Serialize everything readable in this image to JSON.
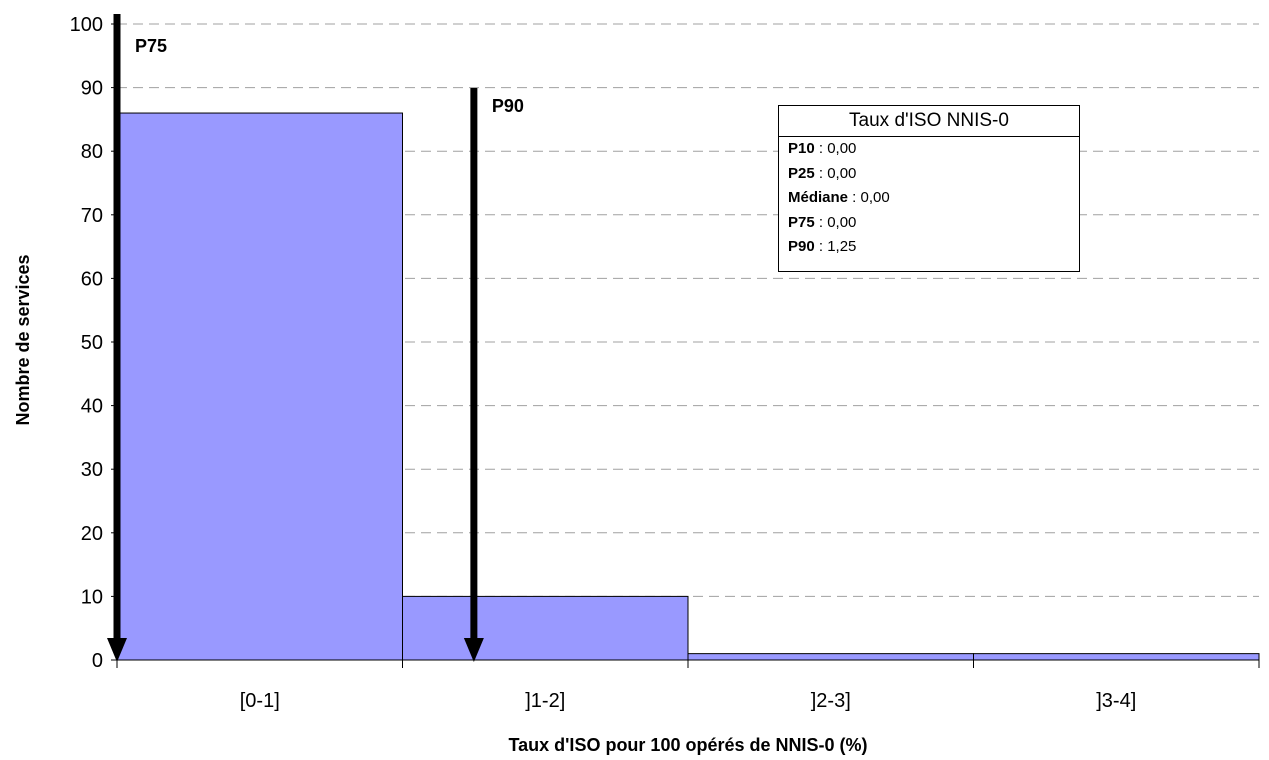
{
  "chart_data": {
    "type": "bar",
    "title": "",
    "xlabel": "Taux d'ISO pour 100 opérés de NNIS-0 (%)",
    "ylabel": "Nombre de services",
    "categories": [
      "[0-1]",
      "]1-2]",
      "]2-3]",
      "]3-4]"
    ],
    "values": [
      86,
      10,
      1,
      1
    ],
    "ylim": [
      0,
      100
    ],
    "yticks": [
      0,
      10,
      20,
      30,
      40,
      50,
      60,
      70,
      80,
      90,
      100
    ],
    "grid": "horizontal dashed",
    "bar_color": "#9999ff",
    "markers": [
      {
        "label": "P75",
        "x": 0.0
      },
      {
        "label": "P90",
        "x": 1.25
      }
    ],
    "stats_box": {
      "title": "Taux d'ISO NNIS-0",
      "rows": [
        {
          "key": "P10",
          "value": " : 0,00"
        },
        {
          "key": "P25",
          "value": " : 0,00"
        },
        {
          "key": "Médiane",
          "value": " : 0,00"
        },
        {
          "key": "P75",
          "value": " : 0,00"
        },
        {
          "key": "P90",
          "value": " : 1,25"
        }
      ]
    }
  }
}
